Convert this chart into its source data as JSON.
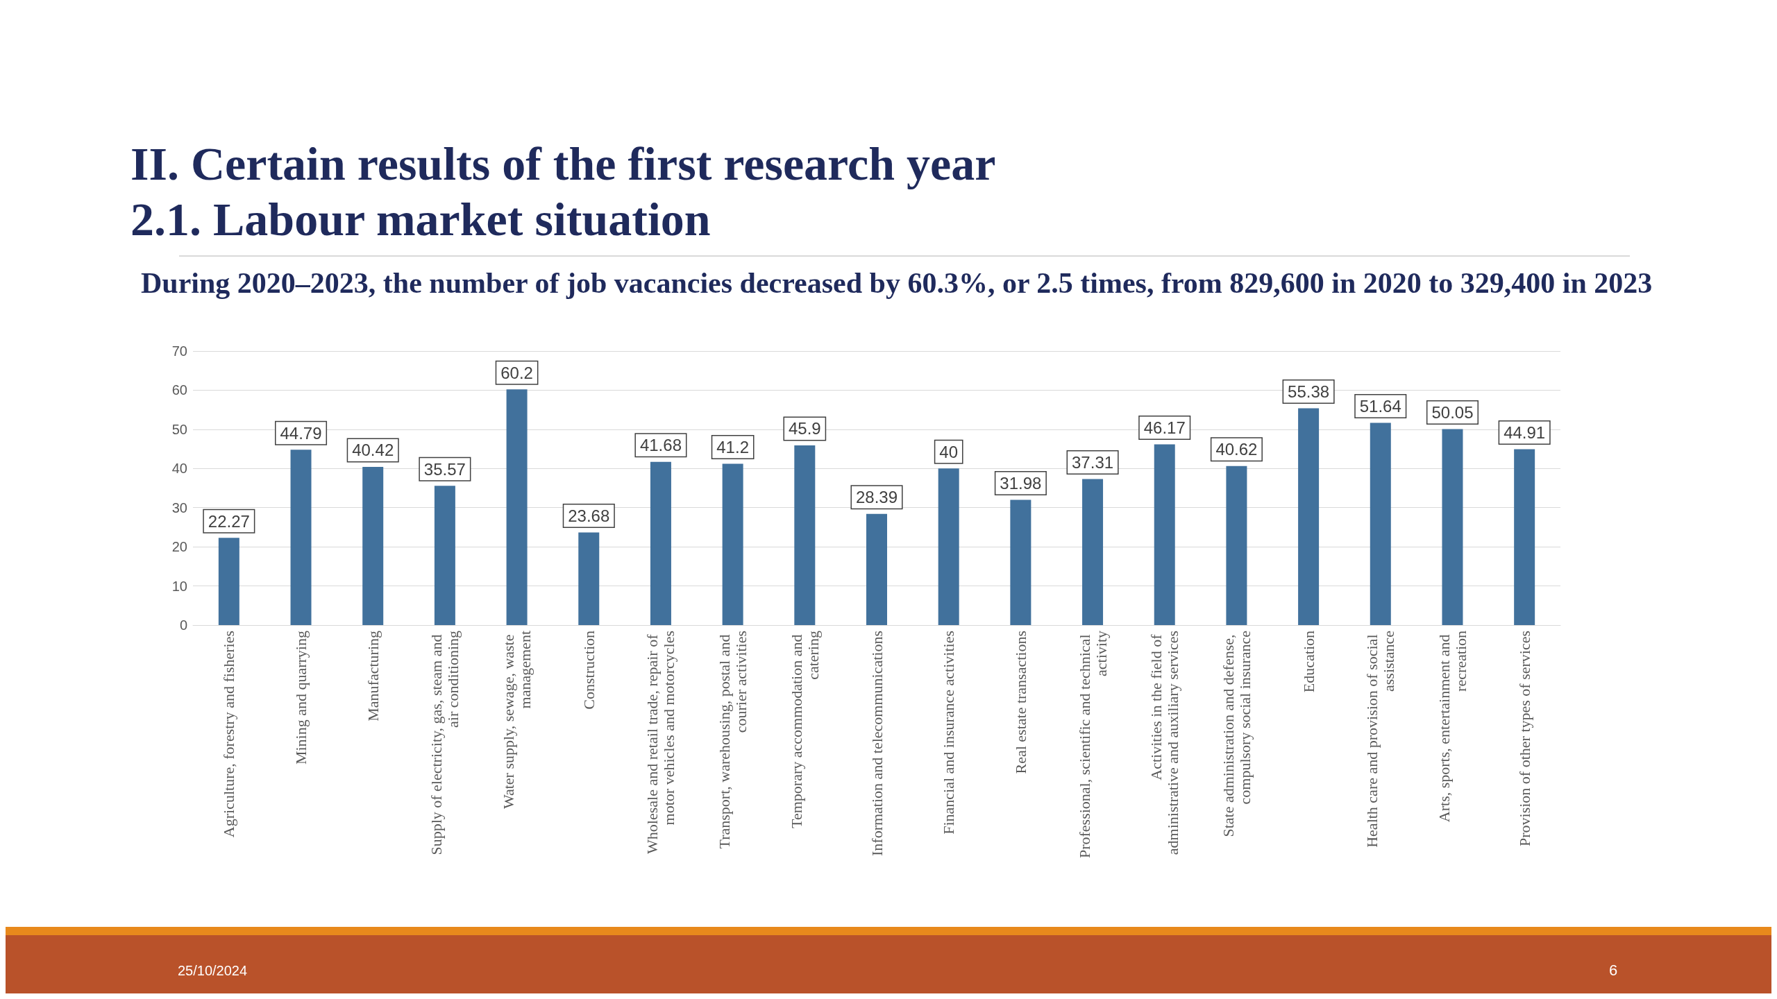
{
  "chart_data": {
    "type": "bar",
    "title": "II. Certain results of the first research year",
    "subtitle": "2.1. Labour market situation",
    "annotations": [
      "During 2020–2023, the number of job vacancies decreased by 60.3%, or 2.5 times, from 829,600 in 2020 to 329,400 in 2023",
      "25/10/2024",
      "6"
    ],
    "categories": [
      "Agriculture, forestry and fisheries",
      "Mining and quarrying",
      "Manufacturing",
      "Supply of electricity, gas, steam and air conditioning",
      "Water supply, sewage, waste management",
      "Construction",
      "Wholesale and retail trade, repair of motor vehicles and motorcycles",
      "Transport, warehousing, postal and courier activities",
      "Temporary accommodation and catering",
      "Information and telecommunications",
      "Financial and insurance activities",
      "Real estate transactions",
      "Professional, scientific and technical activity",
      "Activities in the field of administrative and auxiliary services",
      "State administration and defense, compulsory social insurance",
      "Education",
      "Health care and provision of social assistance",
      "Arts, sports, entertainment and recreation",
      "Provision of other types of services"
    ],
    "values": [
      22.27,
      44.79,
      40.42,
      35.57,
      60.2,
      23.68,
      41.68,
      41.2,
      45.9,
      28.39,
      40,
      31.98,
      37.31,
      46.17,
      40.62,
      55.38,
      51.64,
      50.05,
      44.91
    ],
    "color": "#41719c",
    "ylim": [
      0,
      70
    ],
    "yticks": [
      0,
      10,
      20,
      30,
      40,
      50,
      60,
      70
    ],
    "grid": "y",
    "data_labels": true
  }
}
